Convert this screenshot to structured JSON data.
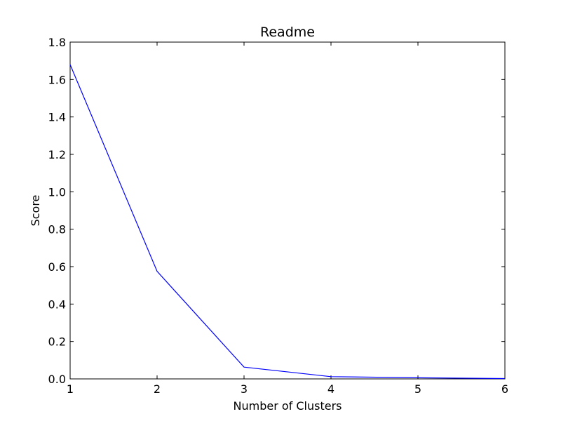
{
  "chart_data": {
    "type": "line",
    "title": "Readme",
    "xlabel": "Number of Clusters",
    "ylabel": "Score",
    "x": [
      1,
      2,
      3,
      4,
      5,
      6
    ],
    "series": [
      {
        "values": [
          1.68,
          0.575,
          0.063,
          0.012,
          0.006,
          0.002
        ],
        "color": "#0000ff"
      }
    ],
    "xlim": [
      1,
      6
    ],
    "ylim": [
      0.0,
      1.8
    ],
    "xticks": [
      "1",
      "2",
      "3",
      "4",
      "5",
      "6"
    ],
    "yticks": [
      "0.0",
      "0.2",
      "0.4",
      "0.6",
      "0.8",
      "1.0",
      "1.2",
      "1.4",
      "1.6",
      "1.8"
    ],
    "grid": false,
    "legend": "none"
  }
}
